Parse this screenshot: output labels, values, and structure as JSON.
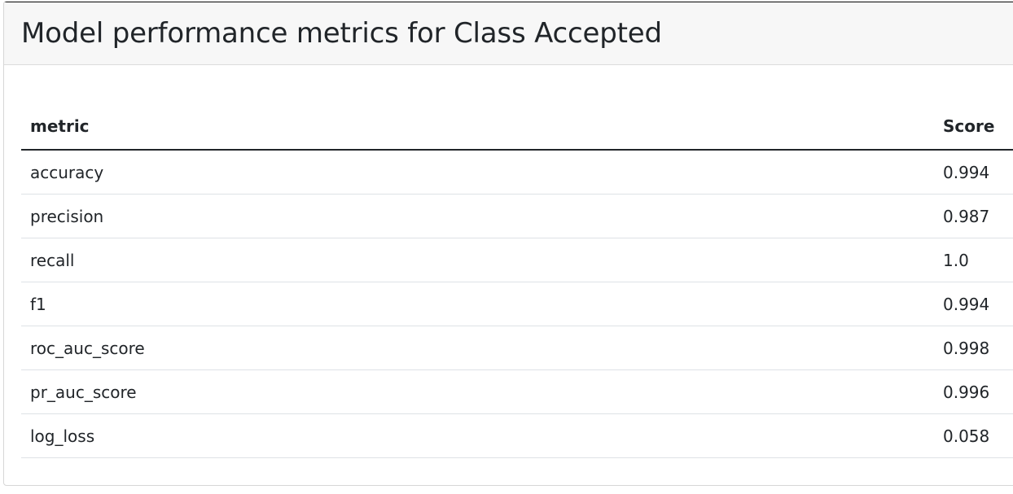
{
  "card": {
    "title": "Model performance metrics for Class Accepted"
  },
  "table": {
    "columns": [
      "metric",
      "Score"
    ],
    "rows": [
      {
        "metric": "accuracy",
        "score": "0.994"
      },
      {
        "metric": "precision",
        "score": "0.987"
      },
      {
        "metric": "recall",
        "score": "1.0"
      },
      {
        "metric": "f1",
        "score": "0.994"
      },
      {
        "metric": "roc_auc_score",
        "score": "0.998"
      },
      {
        "metric": "pr_auc_score",
        "score": "0.996"
      },
      {
        "metric": "log_loss",
        "score": "0.058"
      }
    ]
  }
}
